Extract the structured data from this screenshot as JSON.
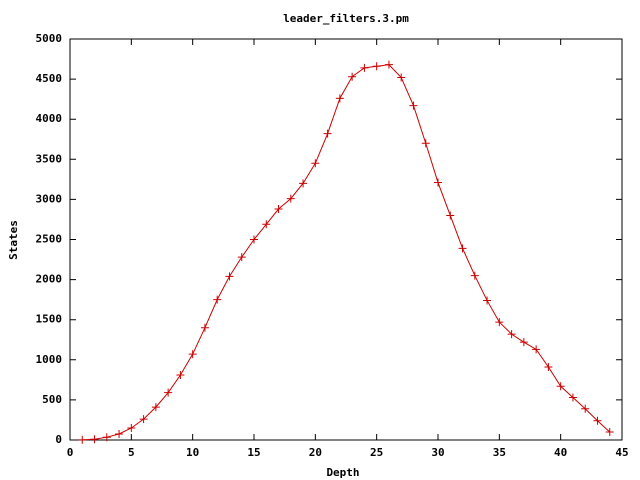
{
  "chart_data": {
    "type": "line",
    "title": "leader_filters.3.pm",
    "xlabel": "Depth",
    "ylabel": "States",
    "x": [
      1,
      2,
      3,
      4,
      5,
      6,
      7,
      8,
      9,
      10,
      11,
      12,
      13,
      14,
      15,
      16,
      17,
      18,
      19,
      20,
      21,
      22,
      23,
      24,
      25,
      26,
      27,
      28,
      29,
      30,
      31,
      32,
      33,
      34,
      35,
      36,
      37,
      38,
      39,
      40,
      41,
      42,
      43,
      44
    ],
    "values": [
      1,
      10,
      35,
      75,
      150,
      260,
      410,
      590,
      810,
      1070,
      1400,
      1750,
      2040,
      2280,
      2500,
      2690,
      2880,
      3010,
      3200,
      3450,
      3820,
      4260,
      4530,
      4640,
      4660,
      4680,
      4520,
      4170,
      3700,
      3210,
      2800,
      2390,
      2050,
      1740,
      1470,
      1320,
      1220,
      1130,
      910,
      670,
      530,
      390,
      240,
      100
    ],
    "color": "#cc0000",
    "xlim": [
      0,
      45
    ],
    "xticks": [
      0,
      5,
      10,
      15,
      20,
      25,
      30,
      35,
      40,
      45
    ],
    "ylim": [
      0,
      5000
    ],
    "yticks": [
      0,
      500,
      1000,
      1500,
      2000,
      2500,
      3000,
      3500,
      4000,
      4500,
      5000
    ]
  }
}
